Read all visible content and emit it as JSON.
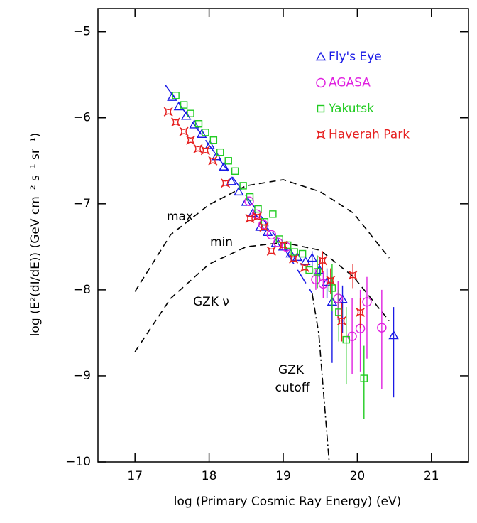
{
  "chart_data": {
    "type": "scatter",
    "x_label": "log (Primary Cosmic Ray Energy) (eV)",
    "y_label": "log (E²(dI/dE)) (GeV cm⁻² s⁻¹ sr⁻¹)",
    "xlim": [
      16.5,
      21.5
    ],
    "ylim": [
      -10,
      -4.73
    ],
    "xticks": [
      17,
      18,
      19,
      20,
      21
    ],
    "yticks": [
      {
        "value": -5,
        "label": "−5"
      },
      {
        "value": -6,
        "label": "−6"
      },
      {
        "value": -7,
        "label": "−7"
      },
      {
        "value": -8,
        "label": "−8"
      },
      {
        "value": -9,
        "label": "−9"
      },
      {
        "value": -10,
        "label": "−10"
      }
    ],
    "legend": "top-right",
    "series": [
      {
        "name": "Fly's Eye",
        "color": "#1a1ae6",
        "marker": "triangle",
        "x": [
          17.5,
          17.59,
          17.69,
          17.8,
          17.9,
          18.01,
          18.1,
          18.2,
          18.3,
          18.4,
          18.5,
          18.59,
          18.69,
          18.79,
          18.9,
          19.0,
          19.1,
          19.19,
          19.3,
          19.39,
          19.49,
          19.59,
          19.66,
          19.8,
          20.49
        ],
        "values": [
          -5.76,
          -5.87,
          -5.98,
          -6.08,
          -6.19,
          -6.32,
          -6.45,
          -6.57,
          -6.74,
          -6.86,
          -6.98,
          -7.11,
          -7.27,
          -7.33,
          -7.46,
          -7.5,
          -7.58,
          -7.62,
          -7.67,
          -7.63,
          -7.77,
          -7.91,
          -8.14,
          -8.11,
          -8.53
        ],
        "err_low": [
          null,
          null,
          null,
          null,
          null,
          null,
          null,
          null,
          null,
          null,
          null,
          null,
          null,
          null,
          null,
          null,
          null,
          null,
          null,
          -7.73,
          -7.88,
          -8.1,
          -8.85,
          -8.5,
          -9.25
        ],
        "err_high": [
          null,
          null,
          null,
          null,
          null,
          null,
          null,
          null,
          null,
          null,
          null,
          null,
          null,
          null,
          null,
          null,
          null,
          null,
          null,
          -7.55,
          -7.65,
          -7.75,
          -7.85,
          -7.95,
          -8.2
        ]
      },
      {
        "name": "AGASA",
        "color": "#e020e0",
        "marker": "circle",
        "x": [
          18.54,
          18.64,
          18.73,
          18.84,
          18.93,
          19.04,
          19.44,
          19.54,
          19.74,
          19.93,
          20.04,
          20.13,
          20.33
        ],
        "values": [
          -6.97,
          -7.12,
          -7.24,
          -7.36,
          -7.45,
          -7.5,
          -7.88,
          -7.93,
          -8.1,
          -8.54,
          -8.45,
          -8.14,
          -8.44
        ],
        "err_low": [
          null,
          null,
          null,
          null,
          null,
          null,
          -8.0,
          -8.1,
          -8.35,
          -8.98,
          -8.95,
          -8.8,
          -9.15
        ],
        "err_high": [
          null,
          null,
          null,
          null,
          null,
          null,
          -7.75,
          -7.78,
          -7.9,
          -8.1,
          -8.0,
          -7.85,
          -8.0
        ]
      },
      {
        "name": "Yakutsk",
        "color": "#22cc22",
        "marker": "square",
        "x": [
          17.55,
          17.66,
          17.75,
          17.86,
          17.95,
          18.06,
          18.15,
          18.26,
          18.35,
          18.46,
          18.55,
          18.66,
          18.75,
          18.86,
          18.95,
          19.06,
          19.15,
          19.26,
          19.35,
          19.46,
          19.66,
          19.75,
          19.85,
          20.09
        ],
        "values": [
          -5.74,
          -5.85,
          -5.95,
          -6.07,
          -6.17,
          -6.26,
          -6.4,
          -6.5,
          -6.62,
          -6.79,
          -6.92,
          -7.06,
          -7.21,
          -7.12,
          -7.41,
          -7.48,
          -7.56,
          -7.58,
          -7.77,
          -7.79,
          -7.98,
          -8.26,
          -8.58,
          -9.03
        ],
        "err_low": [
          null,
          null,
          null,
          null,
          null,
          null,
          null,
          null,
          null,
          null,
          null,
          null,
          null,
          null,
          null,
          null,
          null,
          null,
          null,
          -7.98,
          -8.25,
          -8.6,
          -9.1,
          -9.5
        ],
        "err_high": [
          null,
          null,
          null,
          null,
          null,
          null,
          null,
          null,
          null,
          null,
          null,
          null,
          null,
          null,
          null,
          null,
          null,
          null,
          null,
          -7.6,
          -7.7,
          -8.0,
          -8.2,
          -8.65
        ]
      },
      {
        "name": "Haverah Park",
        "color": "#e62020",
        "marker": "star",
        "x": [
          17.45,
          17.55,
          17.66,
          17.75,
          17.85,
          17.95,
          18.05,
          18.22,
          18.55,
          18.65,
          18.74,
          18.84,
          19.0,
          19.14,
          19.29,
          19.53,
          19.64,
          19.79,
          19.94,
          20.04
        ],
        "values": [
          -5.93,
          -6.05,
          -6.16,
          -6.26,
          -6.36,
          -6.38,
          -6.5,
          -6.76,
          -7.17,
          -7.15,
          -7.27,
          -7.55,
          -7.48,
          -7.64,
          -7.74,
          -7.66,
          -7.89,
          -8.36,
          -7.83,
          -8.26
        ],
        "err_low": [
          null,
          null,
          null,
          null,
          null,
          null,
          null,
          null,
          null,
          null,
          null,
          null,
          null,
          null,
          null,
          -7.8,
          -8.05,
          -8.6,
          -7.98,
          -8.45
        ],
        "err_high": [
          null,
          null,
          null,
          null,
          null,
          null,
          null,
          null,
          null,
          null,
          null,
          null,
          null,
          null,
          null,
          -7.55,
          -7.75,
          -8.15,
          -7.7,
          -8.1
        ]
      }
    ],
    "lines": [
      {
        "color": "#1a1ae6",
        "dash": "long",
        "x": [
          17.41,
          19.0,
          19.39
        ],
        "values": [
          -5.62,
          -7.5,
          -8.04
        ]
      },
      {
        "color": "#000000",
        "dash": "dash",
        "x": [
          17,
          17.48,
          18,
          18.5,
          19,
          19.5,
          19.95,
          20.43
        ],
        "values": [
          -8.02,
          -7.36,
          -7.01,
          -6.79,
          -6.72,
          -6.86,
          -7.11,
          -7.63
        ]
      },
      {
        "color": "#000000",
        "dash": "dash",
        "x": [
          17,
          17.48,
          18,
          18.5,
          19,
          19.5,
          19.95,
          20.43
        ],
        "values": [
          -8.72,
          -8.1,
          -7.7,
          -7.5,
          -7.45,
          -7.54,
          -7.85,
          -8.36
        ]
      },
      {
        "color": "#000000",
        "dash": "dashdot",
        "x": [
          19.39,
          19.48,
          19.55,
          19.62
        ],
        "values": [
          -8.04,
          -8.51,
          -9.26,
          -10
        ]
      }
    ],
    "annotations": [
      "max",
      "min",
      "GZK ν",
      "GZK",
      "cutoff"
    ]
  }
}
